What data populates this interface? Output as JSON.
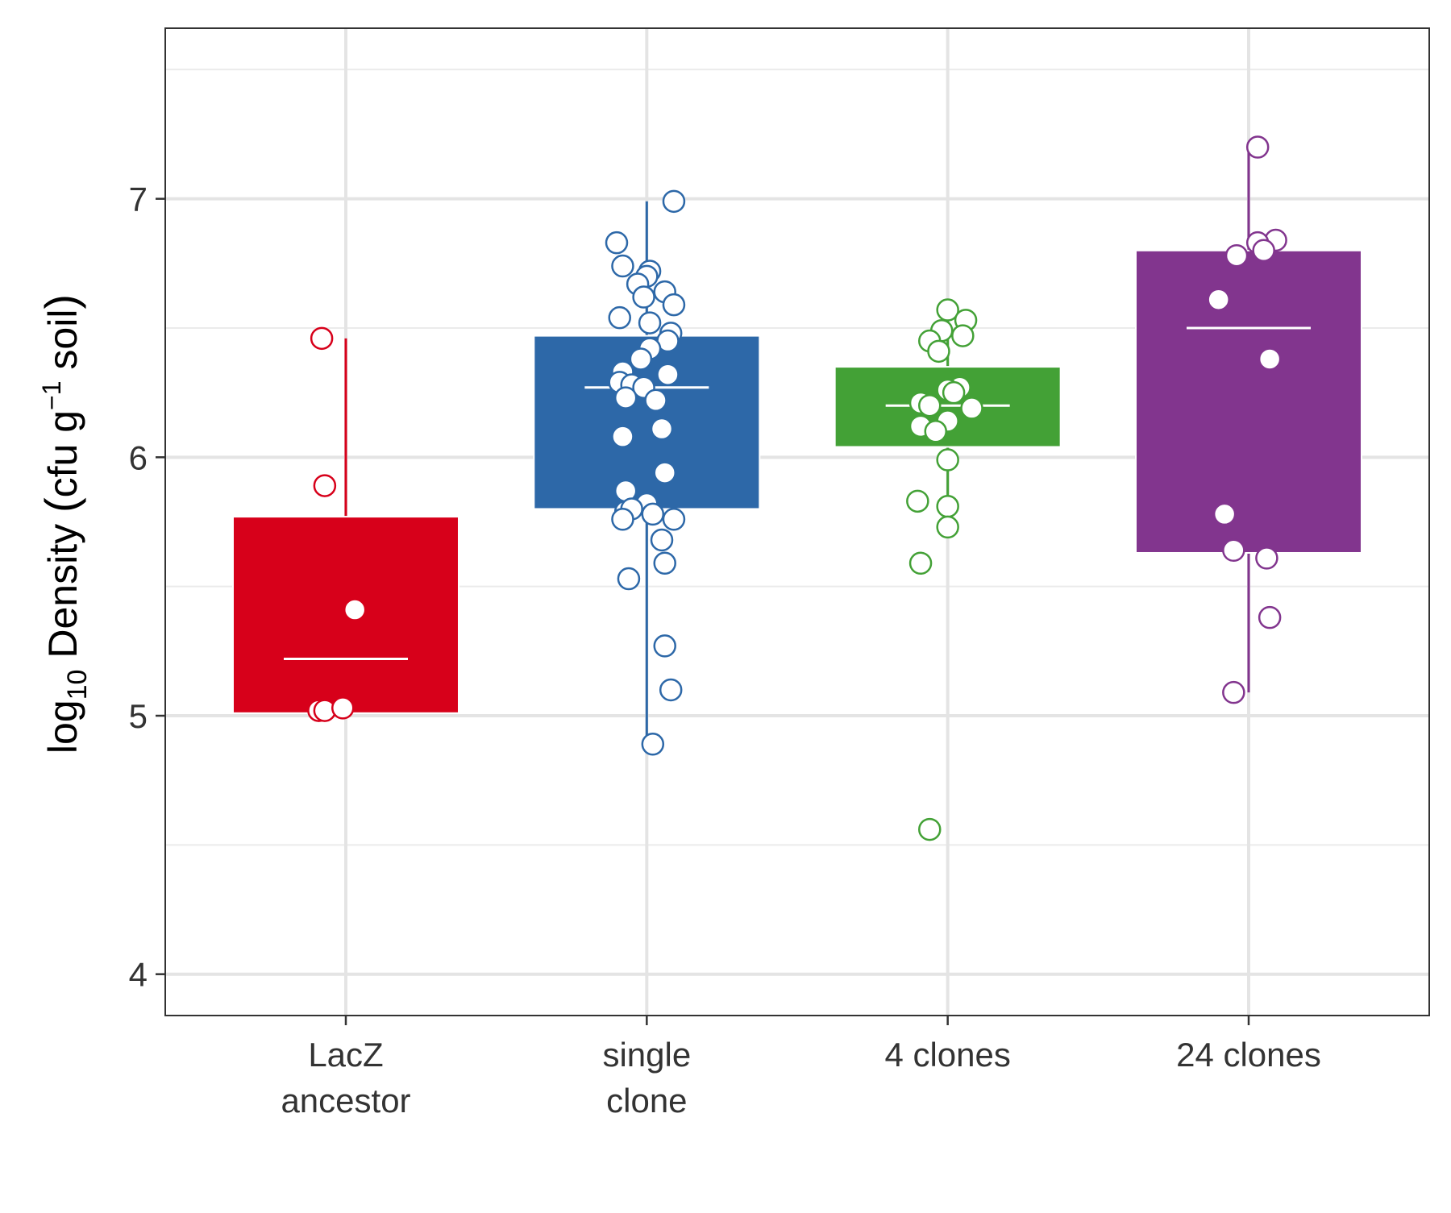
{
  "chart_data": {
    "type": "box",
    "title": "",
    "xlabel": "",
    "ylabel": {
      "prefix": "log",
      "prefix_sub": "10",
      "main": " Density ",
      "unit": "cfu g",
      "unit_sup": "−1",
      "unit_end": " soil"
    },
    "ylim": [
      3.84,
      7.66
    ],
    "yticks": [
      4,
      5,
      6,
      7
    ],
    "grid": true,
    "legend": "none",
    "categories": [
      {
        "lines": [
          "LacZ",
          "ancestor"
        ]
      },
      {
        "lines": [
          "single",
          "clone"
        ]
      },
      {
        "lines": [
          "4 clones"
        ]
      },
      {
        "lines": [
          "24 clones"
        ]
      }
    ],
    "series": [
      {
        "color": "#d7001a",
        "box": {
          "q1": 5.01,
          "median": 5.22,
          "q3": 5.77,
          "whisker_low": 5.01,
          "whisker_high": 6.46
        },
        "points": [
          {
            "x": -0.08,
            "y": 6.46
          },
          {
            "x": -0.07,
            "y": 5.89
          },
          {
            "x": 0.03,
            "y": 5.41
          },
          {
            "x": -0.09,
            "y": 5.02
          },
          {
            "x": -0.07,
            "y": 5.02
          },
          {
            "x": -0.01,
            "y": 5.03
          }
        ]
      },
      {
        "color": "#2d68a8",
        "box": {
          "q1": 5.8,
          "median": 6.27,
          "q3": 6.47,
          "whisker_low": 4.89,
          "whisker_high": 6.99
        },
        "points": [
          {
            "x": 0.09,
            "y": 6.99
          },
          {
            "x": -0.1,
            "y": 6.83
          },
          {
            "x": -0.08,
            "y": 6.74
          },
          {
            "x": 0.01,
            "y": 6.72
          },
          {
            "x": 0.0,
            "y": 6.7
          },
          {
            "x": -0.03,
            "y": 6.67
          },
          {
            "x": 0.06,
            "y": 6.64
          },
          {
            "x": -0.01,
            "y": 6.62
          },
          {
            "x": 0.09,
            "y": 6.59
          },
          {
            "x": -0.09,
            "y": 6.54
          },
          {
            "x": 0.01,
            "y": 6.52
          },
          {
            "x": 0.08,
            "y": 6.48
          },
          {
            "x": 0.07,
            "y": 6.45
          },
          {
            "x": 0.01,
            "y": 6.42
          },
          {
            "x": -0.02,
            "y": 6.38
          },
          {
            "x": -0.08,
            "y": 6.33
          },
          {
            "x": 0.07,
            "y": 6.32
          },
          {
            "x": -0.09,
            "y": 6.29
          },
          {
            "x": -0.05,
            "y": 6.28
          },
          {
            "x": -0.01,
            "y": 6.27
          },
          {
            "x": -0.07,
            "y": 6.23
          },
          {
            "x": 0.03,
            "y": 6.22
          },
          {
            "x": 0.05,
            "y": 6.11
          },
          {
            "x": -0.08,
            "y": 6.08
          },
          {
            "x": 0.06,
            "y": 5.94
          },
          {
            "x": -0.07,
            "y": 5.87
          },
          {
            "x": 0.0,
            "y": 5.82
          },
          {
            "x": -0.07,
            "y": 5.79
          },
          {
            "x": -0.05,
            "y": 5.8
          },
          {
            "x": 0.02,
            "y": 5.78
          },
          {
            "x": 0.09,
            "y": 5.76
          },
          {
            "x": -0.08,
            "y": 5.76
          },
          {
            "x": 0.05,
            "y": 5.68
          },
          {
            "x": 0.06,
            "y": 5.59
          },
          {
            "x": -0.06,
            "y": 5.53
          },
          {
            "x": 0.06,
            "y": 5.27
          },
          {
            "x": 0.08,
            "y": 5.1
          },
          {
            "x": 0.02,
            "y": 4.89
          }
        ]
      },
      {
        "color": "#43a136",
        "box": {
          "q1": 6.04,
          "median": 6.2,
          "q3": 6.35,
          "whisker_low": 5.73,
          "whisker_high": 6.57
        },
        "points": [
          {
            "x": 0.0,
            "y": 6.57
          },
          {
            "x": 0.06,
            "y": 6.53
          },
          {
            "x": -0.02,
            "y": 6.49
          },
          {
            "x": 0.05,
            "y": 6.47
          },
          {
            "x": -0.06,
            "y": 6.45
          },
          {
            "x": -0.03,
            "y": 6.41
          },
          {
            "x": 0.04,
            "y": 6.27
          },
          {
            "x": 0.0,
            "y": 6.26
          },
          {
            "x": 0.02,
            "y": 6.25
          },
          {
            "x": -0.09,
            "y": 6.21
          },
          {
            "x": -0.06,
            "y": 6.2
          },
          {
            "x": 0.08,
            "y": 6.19
          },
          {
            "x": 0.0,
            "y": 6.14
          },
          {
            "x": -0.09,
            "y": 6.12
          },
          {
            "x": -0.04,
            "y": 6.1
          },
          {
            "x": 0.0,
            "y": 5.99
          },
          {
            "x": -0.1,
            "y": 5.83
          },
          {
            "x": 0.0,
            "y": 5.81
          },
          {
            "x": 0.0,
            "y": 5.73
          },
          {
            "x": -0.09,
            "y": 5.59
          },
          {
            "x": -0.06,
            "y": 4.56
          }
        ]
      },
      {
        "color": "#82358e",
        "box": {
          "q1": 5.63,
          "median": 6.5,
          "q3": 6.8,
          "whisker_low": 5.09,
          "whisker_high": 7.2
        },
        "points": [
          {
            "x": 0.03,
            "y": 7.2
          },
          {
            "x": 0.09,
            "y": 6.84
          },
          {
            "x": 0.03,
            "y": 6.83
          },
          {
            "x": -0.04,
            "y": 6.78
          },
          {
            "x": 0.05,
            "y": 6.8
          },
          {
            "x": -0.1,
            "y": 6.61
          },
          {
            "x": 0.07,
            "y": 6.38
          },
          {
            "x": -0.08,
            "y": 5.78
          },
          {
            "x": -0.05,
            "y": 5.64
          },
          {
            "x": 0.06,
            "y": 5.61
          },
          {
            "x": 0.07,
            "y": 5.38
          },
          {
            "x": -0.05,
            "y": 5.09
          }
        ]
      }
    ]
  }
}
